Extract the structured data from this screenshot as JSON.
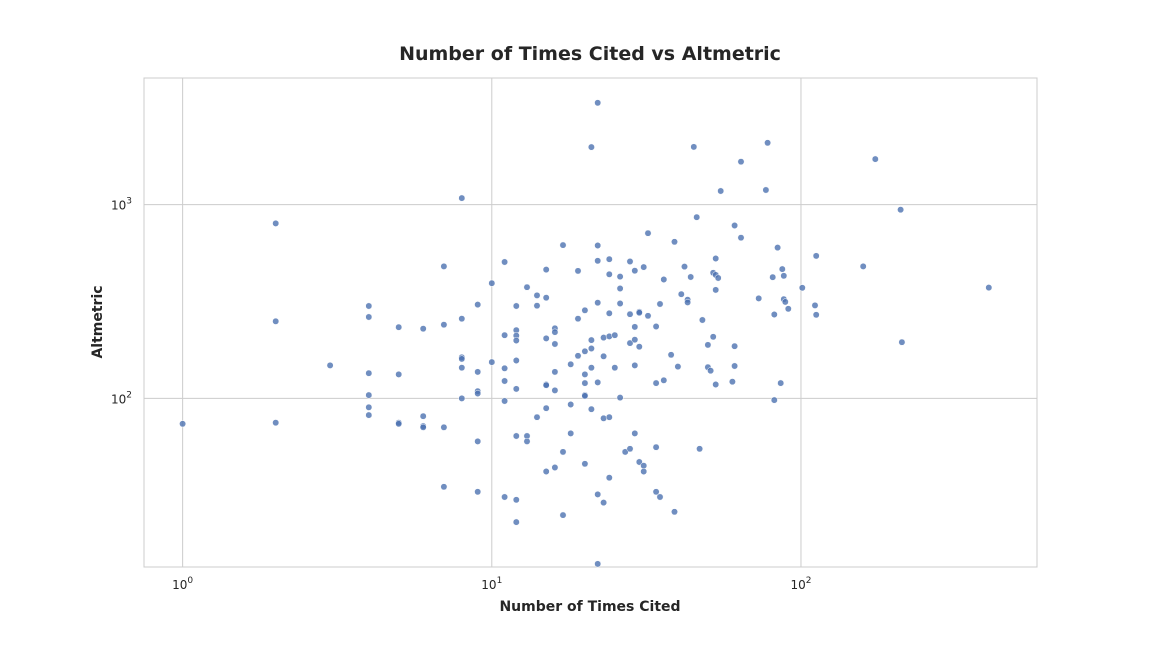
{
  "chart_data": {
    "type": "scatter",
    "title": "Number of Times Cited vs Altmetric",
    "xlabel": "Number of Times Cited",
    "ylabel": "Altmetric",
    "x_scale": "log",
    "y_scale": "log",
    "xlim": [
      0.75,
      580
    ],
    "ylim": [
      13.5,
      4500
    ],
    "x_ticks": [
      1,
      10,
      100
    ],
    "x_tick_labels": [
      {
        "base": "10",
        "exp": "0"
      },
      {
        "base": "10",
        "exp": "1"
      },
      {
        "base": "10",
        "exp": "2"
      }
    ],
    "y_ticks": [
      100,
      1000
    ],
    "y_tick_labels": [
      {
        "base": "10",
        "exp": "2"
      },
      {
        "base": "10",
        "exp": "3"
      }
    ],
    "grid": true,
    "color": "#4c72b0",
    "points": [
      [
        1,
        74
      ],
      [
        2,
        800
      ],
      [
        2,
        250
      ],
      [
        2,
        75
      ],
      [
        3,
        148
      ],
      [
        4,
        300
      ],
      [
        4,
        263
      ],
      [
        4,
        135
      ],
      [
        4,
        104
      ],
      [
        4,
        90
      ],
      [
        4,
        82
      ],
      [
        5,
        233
      ],
      [
        5,
        133
      ],
      [
        5,
        75
      ],
      [
        5,
        74
      ],
      [
        6,
        229
      ],
      [
        6,
        81
      ],
      [
        6,
        72
      ],
      [
        6,
        71
      ],
      [
        7,
        480
      ],
      [
        7,
        240
      ],
      [
        7,
        71
      ],
      [
        7,
        35
      ],
      [
        8,
        1080
      ],
      [
        8,
        258
      ],
      [
        8,
        163
      ],
      [
        8,
        160
      ],
      [
        8,
        144
      ],
      [
        8,
        100
      ],
      [
        9,
        305
      ],
      [
        9,
        137
      ],
      [
        9,
        109
      ],
      [
        9,
        106
      ],
      [
        9,
        60
      ],
      [
        9,
        33
      ],
      [
        10,
        393
      ],
      [
        10,
        154
      ],
      [
        11,
        506
      ],
      [
        11,
        212
      ],
      [
        11,
        143
      ],
      [
        11,
        123
      ],
      [
        11,
        97
      ],
      [
        11,
        31
      ],
      [
        12,
        300
      ],
      [
        12,
        225
      ],
      [
        12,
        211
      ],
      [
        12,
        199
      ],
      [
        12,
        157
      ],
      [
        12,
        112
      ],
      [
        12,
        64
      ],
      [
        12,
        30
      ],
      [
        12,
        23
      ],
      [
        13,
        375
      ],
      [
        13,
        64
      ],
      [
        13,
        60
      ],
      [
        14,
        340
      ],
      [
        14,
        301
      ],
      [
        14,
        80
      ],
      [
        15,
        462
      ],
      [
        15,
        331
      ],
      [
        15,
        204
      ],
      [
        15,
        118
      ],
      [
        15,
        117
      ],
      [
        15,
        89
      ],
      [
        15,
        42
      ],
      [
        16,
        230
      ],
      [
        16,
        220
      ],
      [
        16,
        191
      ],
      [
        16,
        137
      ],
      [
        16,
        110
      ],
      [
        16,
        44
      ],
      [
        17,
        618
      ],
      [
        17,
        53
      ],
      [
        17,
        25
      ],
      [
        18,
        150
      ],
      [
        18,
        93
      ],
      [
        18,
        66
      ],
      [
        19,
        455
      ],
      [
        19,
        258
      ],
      [
        19,
        166
      ],
      [
        20,
        285
      ],
      [
        20,
        175
      ],
      [
        20,
        133
      ],
      [
        20,
        120
      ],
      [
        20,
        104
      ],
      [
        20,
        103
      ],
      [
        20,
        46
      ],
      [
        21,
        1980
      ],
      [
        21,
        200
      ],
      [
        21,
        181
      ],
      [
        21,
        144
      ],
      [
        21,
        88
      ],
      [
        22,
        3350
      ],
      [
        22,
        615
      ],
      [
        22,
        513
      ],
      [
        22,
        312
      ],
      [
        22,
        121
      ],
      [
        22,
        32
      ],
      [
        22,
        14
      ],
      [
        23,
        206
      ],
      [
        23,
        165
      ],
      [
        23,
        79
      ],
      [
        23,
        29
      ],
      [
        24,
        523
      ],
      [
        24,
        437
      ],
      [
        24,
        275
      ],
      [
        24,
        209
      ],
      [
        24,
        80
      ],
      [
        24,
        39
      ],
      [
        25,
        212
      ],
      [
        25,
        144
      ],
      [
        26,
        425
      ],
      [
        26,
        369
      ],
      [
        26,
        309
      ],
      [
        26,
        101
      ],
      [
        27,
        53
      ],
      [
        28,
        509
      ],
      [
        28,
        272
      ],
      [
        28,
        193
      ],
      [
        28,
        55
      ],
      [
        29,
        456
      ],
      [
        29,
        234
      ],
      [
        29,
        201
      ],
      [
        29,
        148
      ],
      [
        29,
        66
      ],
      [
        30,
        280
      ],
      [
        30,
        277
      ],
      [
        30,
        185
      ],
      [
        30,
        47
      ],
      [
        31,
        476
      ],
      [
        31,
        45
      ],
      [
        31,
        42
      ],
      [
        32,
        712
      ],
      [
        32,
        267
      ],
      [
        34,
        235
      ],
      [
        34,
        120
      ],
      [
        34,
        56
      ],
      [
        34,
        33
      ],
      [
        35,
        307
      ],
      [
        35,
        31
      ],
      [
        36,
        411
      ],
      [
        36,
        124
      ],
      [
        38,
        168
      ],
      [
        39,
        643
      ],
      [
        39,
        26
      ],
      [
        40,
        146
      ],
      [
        41,
        345
      ],
      [
        42,
        479
      ],
      [
        43,
        323
      ],
      [
        43,
        313
      ],
      [
        44,
        423
      ],
      [
        45,
        1985
      ],
      [
        46,
        861
      ],
      [
        47,
        55
      ],
      [
        48,
        254
      ],
      [
        50,
        189
      ],
      [
        50,
        145
      ],
      [
        51,
        139
      ],
      [
        52,
        445
      ],
      [
        52,
        208
      ],
      [
        53,
        527
      ],
      [
        53,
        434
      ],
      [
        53,
        363
      ],
      [
        53,
        118
      ],
      [
        54,
        418
      ],
      [
        55,
        1175
      ],
      [
        60,
        122
      ],
      [
        61,
        780
      ],
      [
        61,
        186
      ],
      [
        61,
        147
      ],
      [
        64,
        1665
      ],
      [
        64,
        675
      ],
      [
        73,
        328
      ],
      [
        77,
        1190
      ],
      [
        78,
        2085
      ],
      [
        81,
        422
      ],
      [
        82,
        271
      ],
      [
        82,
        98
      ],
      [
        84,
        600
      ],
      [
        86,
        120
      ],
      [
        87,
        465
      ],
      [
        88,
        429
      ],
      [
        88,
        325
      ],
      [
        89,
        315
      ],
      [
        91,
        290
      ],
      [
        101,
        372
      ],
      [
        111,
        302
      ],
      [
        112,
        270
      ],
      [
        112,
        544
      ],
      [
        159,
        480
      ],
      [
        174,
        1718
      ],
      [
        210,
        941
      ],
      [
        212,
        195
      ],
      [
        405,
        373
      ]
    ]
  }
}
